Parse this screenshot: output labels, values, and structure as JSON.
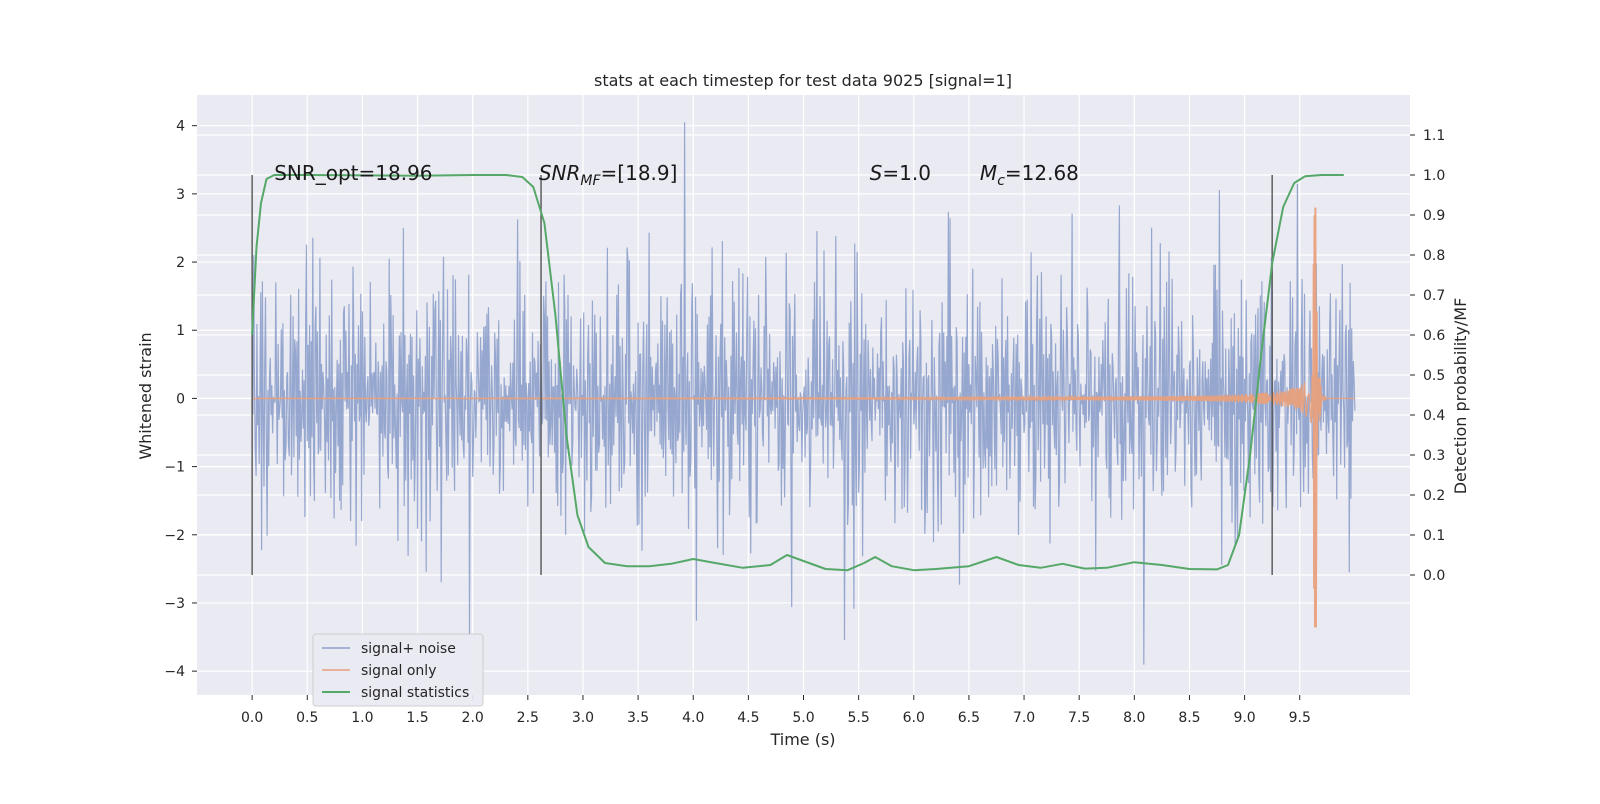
{
  "chart_data": {
    "type": "line",
    "title": "stats at each timestep for test data 9025 [signal=1]",
    "xlabel": "Time (s)",
    "ylabel_left": "Whitened strain",
    "ylabel_right": "Detection probability/MF",
    "xlim": [
      -0.5,
      10.5
    ],
    "ylim_left": [
      -4.35,
      4.45
    ],
    "ylim_right": [
      -0.3,
      1.2
    ],
    "x_ticks": [
      0.0,
      0.5,
      1.0,
      1.5,
      2.0,
      2.5,
      3.0,
      3.5,
      4.0,
      4.5,
      5.0,
      5.5,
      6.0,
      6.5,
      7.0,
      7.5,
      8.0,
      8.5,
      9.0,
      9.5
    ],
    "x_tick_labels": [
      "0.0",
      "0.5",
      "1.0",
      "1.5",
      "2.0",
      "2.5",
      "3.0",
      "3.5",
      "4.0",
      "4.5",
      "5.0",
      "5.5",
      "6.0",
      "6.5",
      "7.0",
      "7.5",
      "8.0",
      "8.5",
      "9.0",
      "9.5"
    ],
    "y_left_ticks": [
      4,
      3,
      2,
      1,
      0,
      -1,
      -2,
      -3,
      -4
    ],
    "y_left_tick_labels": [
      "4",
      "3",
      "2",
      "1",
      "0",
      "−1",
      "−2",
      "−3",
      "−4"
    ],
    "y_right_ticks": [
      1.1,
      1.0,
      0.9,
      0.8,
      0.7,
      0.6,
      0.5,
      0.4,
      0.3,
      0.2,
      0.1,
      0.0
    ],
    "y_right_tick_labels": [
      "1.1",
      "1.0",
      "0.9",
      "0.8",
      "0.7",
      "0.6",
      "0.5",
      "0.4",
      "0.3",
      "0.2",
      "0.1",
      "0.0"
    ],
    "grid": true,
    "legend_position": "lower-left",
    "series": [
      {
        "name": "signal+ noise",
        "color": "#8da0cb",
        "axis": "left",
        "kind": "noise",
        "x_range": [
          0.0,
          10.0
        ],
        "typical_amplitude": 1.35,
        "max": 4.05,
        "min": -3.8
      },
      {
        "name": "signal only",
        "color": "#e8a07c",
        "axis": "left",
        "kind": "chirp",
        "x_range": [
          0.0,
          10.0
        ],
        "merger_time": 9.65,
        "peak_amplitude": 2.8
      },
      {
        "name": "signal statistics",
        "color": "#55a868",
        "axis": "right",
        "x": [
          0.0,
          0.04,
          0.08,
          0.13,
          0.2,
          0.3,
          0.5,
          1.0,
          1.5,
          2.0,
          2.3,
          2.45,
          2.55,
          2.65,
          2.75,
          2.85,
          2.95,
          3.05,
          3.2,
          3.4,
          3.6,
          3.8,
          4.0,
          4.2,
          4.45,
          4.7,
          4.85,
          5.0,
          5.2,
          5.4,
          5.55,
          5.65,
          5.8,
          6.0,
          6.2,
          6.5,
          6.75,
          6.95,
          7.15,
          7.35,
          7.55,
          7.75,
          8.0,
          8.25,
          8.5,
          8.75,
          8.85,
          8.95,
          9.05,
          9.15,
          9.25,
          9.35,
          9.45,
          9.55,
          9.7,
          9.9
        ],
        "values": [
          0.6,
          0.82,
          0.93,
          0.99,
          1.0,
          1.0,
          1.0,
          0.999,
          0.998,
          1.0,
          1.0,
          0.995,
          0.97,
          0.88,
          0.65,
          0.35,
          0.15,
          0.07,
          0.03,
          0.022,
          0.022,
          0.028,
          0.04,
          0.03,
          0.018,
          0.025,
          0.05,
          0.035,
          0.015,
          0.012,
          0.03,
          0.045,
          0.022,
          0.012,
          0.015,
          0.022,
          0.045,
          0.025,
          0.018,
          0.028,
          0.016,
          0.018,
          0.032,
          0.025,
          0.015,
          0.014,
          0.025,
          0.1,
          0.3,
          0.55,
          0.78,
          0.92,
          0.98,
          0.997,
          1.0,
          1.0
        ]
      }
    ],
    "vertical_lines_x": [
      0.0,
      2.62,
      9.25
    ],
    "annotations": [
      {
        "prefix": "SNR_opt=18.96",
        "x": 0.2
      },
      {
        "italic": "SNR",
        "sub": "MF",
        "suffix": "=[18.9]",
        "x": 2.6
      },
      {
        "italic": "S",
        "suffix": "=1.0",
        "x": 5.6
      },
      {
        "italic": "M",
        "sub": "c",
        "suffix": "=12.68",
        "x": 6.6
      }
    ]
  }
}
